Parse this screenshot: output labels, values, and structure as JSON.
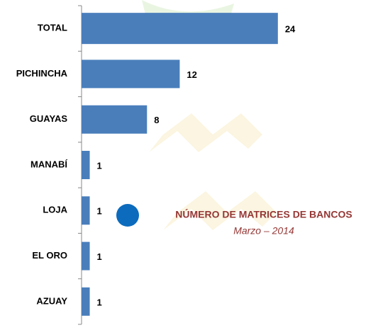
{
  "chart_data": {
    "type": "hbar",
    "title": "NÚMERO DE MATRICES DE BANCOS",
    "subtitle": "Marzo  – 2014",
    "categories": [
      "TOTAL",
      "PICHINCHA",
      "GUAYAS",
      "MANABÍ",
      "LOJA",
      "EL ORO",
      "AZUAY"
    ],
    "values": [
      24,
      12,
      8,
      1,
      1,
      1,
      1
    ],
    "color": "#4a7ebb",
    "xlim": [
      0,
      36.5
    ]
  }
}
